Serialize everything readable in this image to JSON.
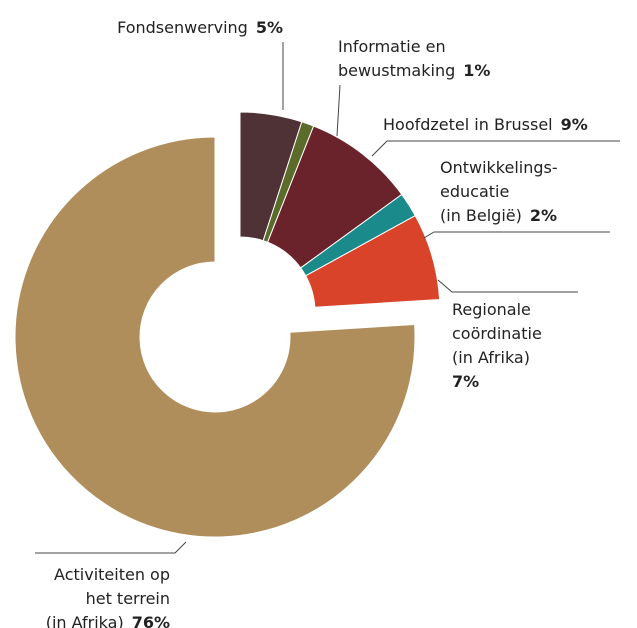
{
  "chart_data": {
    "type": "donut",
    "categories": [
      [
        "Fondsenwerving"
      ],
      [
        "Informatie en",
        "bewustmaking"
      ],
      [
        "Hoofdzetel in Brussel"
      ],
      [
        "Ontwikkelings-",
        "educatie",
        "(in België)"
      ],
      [
        "Regionale",
        "coördinatie",
        "(in Afrika)"
      ],
      [
        "Activiteiten op",
        "het terrein",
        "(in Afrika)"
      ]
    ],
    "values": [
      5,
      1,
      9,
      2,
      7,
      76
    ],
    "value_labels": [
      "5%",
      "1%",
      "9%",
      "2%",
      "7%",
      "76%"
    ],
    "colors": [
      "#4e3236",
      "#5a6b2a",
      "#6b232b",
      "#1a8a8a",
      "#d9432a",
      "#b08e5c"
    ]
  }
}
